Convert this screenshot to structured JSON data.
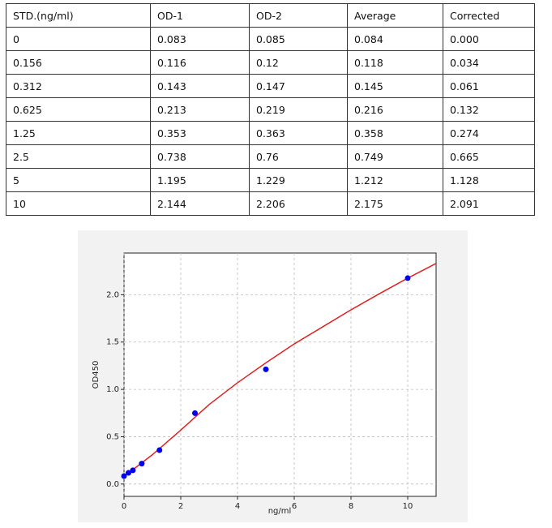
{
  "table": {
    "header": [
      "STD.(ng/ml)",
      "OD-1",
      "OD-2",
      "Average",
      "Corrected"
    ],
    "rows": [
      [
        "0",
        "0.083",
        "0.085",
        "0.084",
        "0.000"
      ],
      [
        "0.156",
        "0.116",
        "0.12",
        "0.118",
        "0.034"
      ],
      [
        "0.312",
        "0.143",
        "0.147",
        "0.145",
        "0.061"
      ],
      [
        "0.625",
        "0.213",
        "0.219",
        "0.216",
        "0.132"
      ],
      [
        "1.25",
        "0.353",
        "0.363",
        "0.358",
        "0.274"
      ],
      [
        "2.5",
        "0.738",
        "0.76",
        "0.749",
        "0.665"
      ],
      [
        "5",
        "1.195",
        "1.229",
        "1.212",
        "1.128"
      ],
      [
        "10",
        "2.144",
        "2.206",
        "2.175",
        "2.091"
      ]
    ]
  },
  "chart_data": {
    "type": "scatter",
    "xlabel": "ng/ml",
    "ylabel": "OD450",
    "xlim": [
      0,
      11
    ],
    "ylim": [
      -0.13,
      2.44
    ],
    "xticks": [
      0,
      2,
      4,
      6,
      8,
      10
    ],
    "yticks": [
      {
        "value": 0,
        "label": "0.0"
      },
      {
        "value": 0.5,
        "label": "0.5"
      },
      {
        "value": 1,
        "label": "1.0"
      },
      {
        "value": 1.5,
        "label": "1.5"
      },
      {
        "value": 2,
        "label": "2.0"
      }
    ],
    "grid": true,
    "series": [
      {
        "type": "line",
        "color": "#dd2222",
        "x": [
          0,
          1,
          2,
          3,
          4,
          5,
          6,
          7,
          8,
          9,
          10,
          11
        ],
        "values": [
          0.08,
          0.31,
          0.57,
          0.84,
          1.07,
          1.28,
          1.48,
          1.66,
          1.84,
          2.01,
          2.175,
          2.33
        ]
      },
      {
        "type": "scatter",
        "color": "#0000ee",
        "x": [
          0,
          0.156,
          0.312,
          0.625,
          1.25,
          2.5,
          5,
          10
        ],
        "values": [
          0.084,
          0.118,
          0.145,
          0.216,
          0.358,
          0.749,
          1.212,
          2.175
        ]
      }
    ]
  }
}
